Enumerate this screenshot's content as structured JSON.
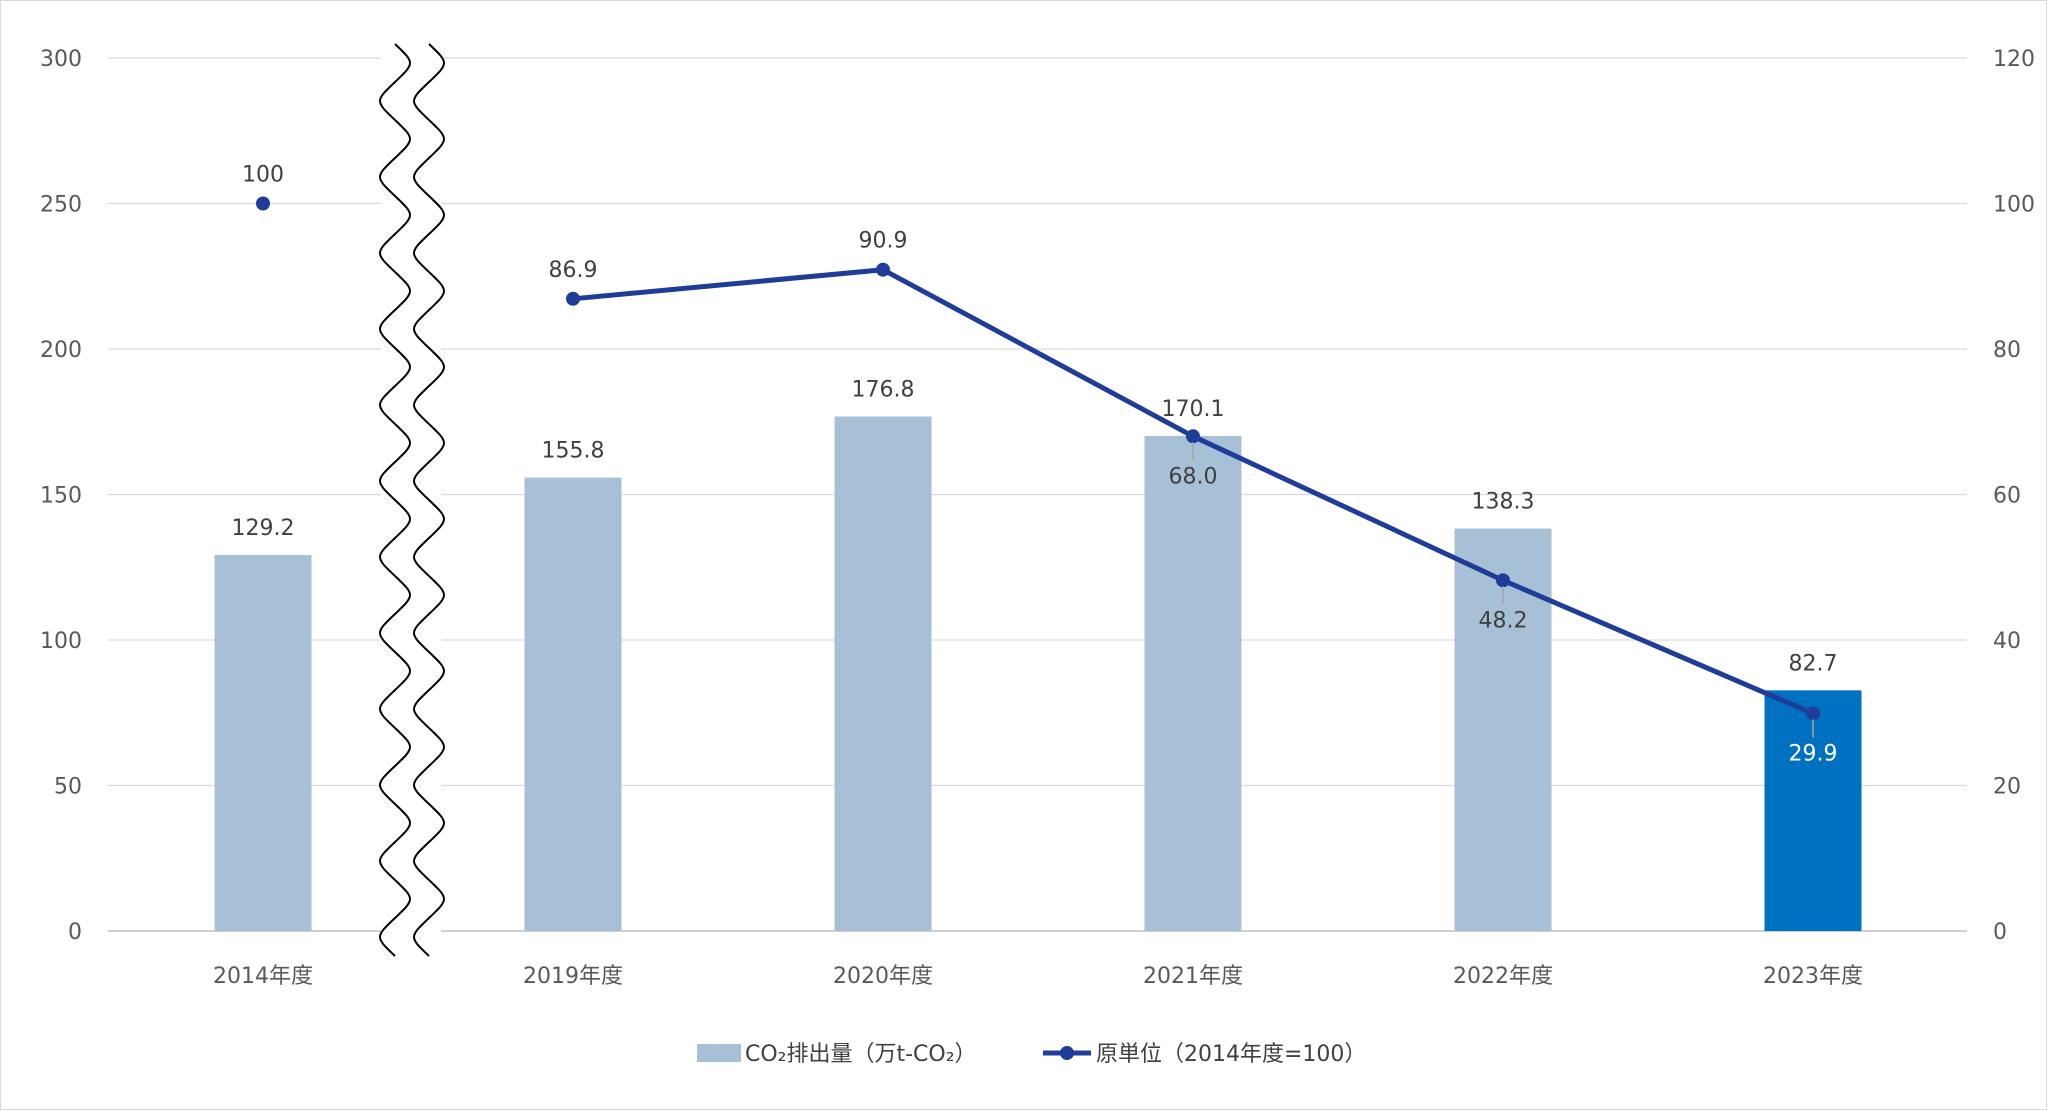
{
  "chart_data": {
    "type": "bar",
    "categories": [
      "2014年度",
      "2019年度",
      "2020年度",
      "2021年度",
      "2022年度",
      "2023年度"
    ],
    "series": [
      {
        "name": "CO₂排出量（万t-CO₂）",
        "type": "bar",
        "axis": "left",
        "values": [
          129.2,
          155.8,
          176.8,
          170.1,
          138.3,
          82.7
        ],
        "labels": [
          "129.2",
          "155.8",
          "176.8",
          "170.1",
          "138.3",
          "82.7"
        ],
        "color": "#a7c0d6",
        "highlight_color": "#0070c0",
        "highlight_index": 5
      },
      {
        "name": "原単位（2014年度=100）",
        "type": "line",
        "axis": "right",
        "values": [
          100,
          86.9,
          90.9,
          68.0,
          48.2,
          29.9
        ],
        "labels": [
          "100",
          "86.9",
          "90.9",
          "68.0",
          "48.2",
          "29.9"
        ],
        "color": "#1f3c99",
        "line_break_after_index": 0
      }
    ],
    "y_left": {
      "min": 0,
      "max": 300,
      "ticks": [
        "0",
        "50",
        "100",
        "150",
        "200",
        "250",
        "300"
      ]
    },
    "y_right": {
      "min": 0,
      "max": 120,
      "ticks": [
        "0",
        "20",
        "40",
        "60",
        "80",
        "100",
        "120"
      ]
    },
    "axis_break_after_category": 0,
    "grid": true,
    "legend_position": "bottom"
  }
}
